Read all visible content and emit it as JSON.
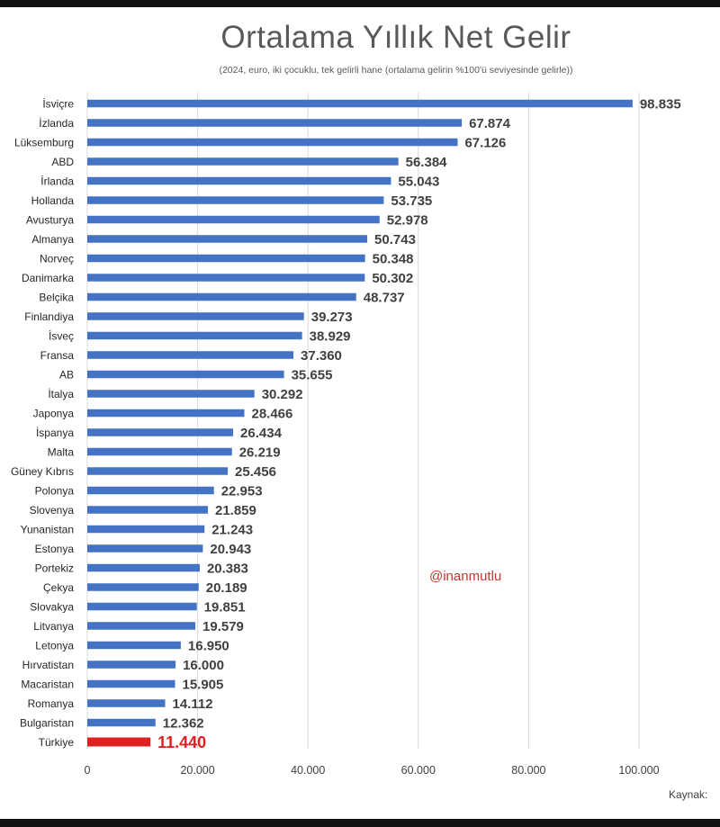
{
  "chart_data": {
    "type": "bar",
    "orientation": "horizontal",
    "title": "Ortalama Yıllık Net Gelir",
    "subtitle": "(2024, euro, iki çocuklu, tek gelirli hane (ortalama gelirin %100'ü seviyesinde gelirle))",
    "categories": [
      "İsviçre",
      "İzlanda",
      "Lüksemburg",
      "ABD",
      "İrlanda",
      "Hollanda",
      "Avusturya",
      "Almanya",
      "Norveç",
      "Danimarka",
      "Belçika",
      "Finlandiya",
      "İsveç",
      "Fransa",
      "AB",
      "İtalya",
      "Japonya",
      "İspanya",
      "Malta",
      "Güney Kıbrıs",
      "Polonya",
      "Slovenya",
      "Yunanistan",
      "Estonya",
      "Portekiz",
      "Çekya",
      "Slovakya",
      "Litvanya",
      "Letonya",
      "Hırvatistan",
      "Macaristan",
      "Romanya",
      "Bulgaristan",
      "Türkiye"
    ],
    "values": [
      98835,
      67874,
      67126,
      56384,
      55043,
      53735,
      52978,
      50743,
      50348,
      50302,
      48737,
      39273,
      38929,
      37360,
      35655,
      30292,
      28466,
      26434,
      26219,
      25456,
      22953,
      21859,
      21243,
      20943,
      20383,
      20189,
      19851,
      19579,
      16950,
      16000,
      15905,
      14112,
      12362,
      11440
    ],
    "value_labels": [
      "98.835",
      "67.874",
      "67.126",
      "56.384",
      "55.043",
      "53.735",
      "52.978",
      "50.743",
      "50.348",
      "50.302",
      "48.737",
      "39.273",
      "38.929",
      "37.360",
      "35.655",
      "30.292",
      "28.466",
      "26.434",
      "26.219",
      "25.456",
      "22.953",
      "21.859",
      "21.243",
      "20.943",
      "20.383",
      "20.189",
      "19.851",
      "19.579",
      "16.950",
      "16.000",
      "15.905",
      "14.112",
      "12.362",
      "11.440"
    ],
    "highlight_category": "Türkiye",
    "xlim": [
      0,
      100000
    ],
    "x_ticks": [
      0,
      20000,
      40000,
      60000,
      80000,
      100000
    ],
    "x_tick_labels": [
      "0",
      "20.000",
      "40.000",
      "60.000",
      "80.000",
      "100.000"
    ],
    "grid": true,
    "colors": {
      "bar": "#4472c4",
      "highlight": "#e02020",
      "label": "#404040",
      "highlight_label": "#e02020",
      "grid": "#d9d9d9"
    }
  },
  "watermark": "@inanmutlu",
  "source_label": "Kaynak:"
}
